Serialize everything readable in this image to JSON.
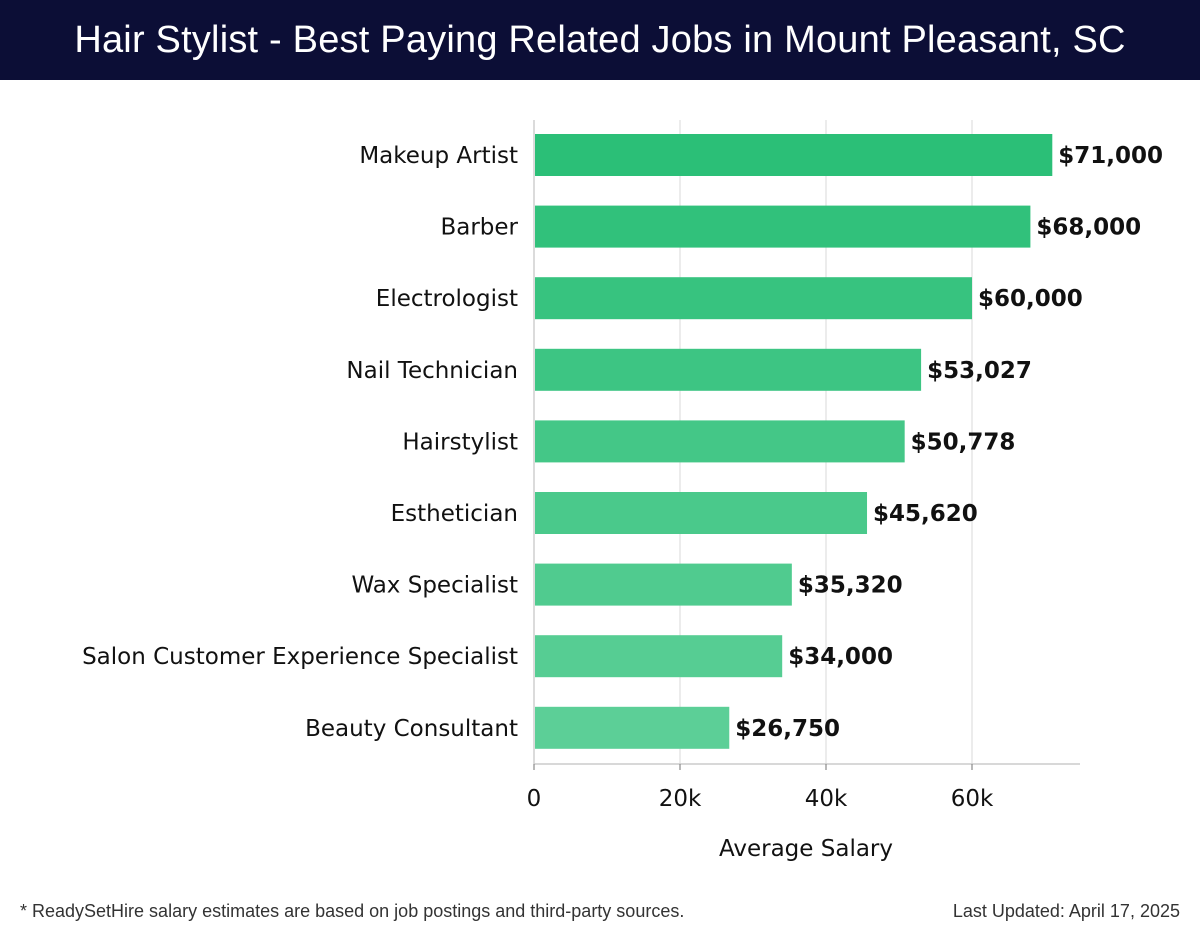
{
  "header": {
    "title": "Hair Stylist - Best Paying Related Jobs in Mount Pleasant, SC"
  },
  "chart_data": {
    "type": "bar",
    "orientation": "horizontal",
    "categories": [
      "Makeup Artist",
      "Barber",
      "Electrologist",
      "Nail Technician",
      "Hairstylist",
      "Esthetician",
      "Wax Specialist",
      "Salon Customer Experience Specialist",
      "Beauty Consultant"
    ],
    "values": [
      71000,
      68000,
      60000,
      53027,
      50778,
      45620,
      35320,
      34000,
      26750
    ],
    "data_labels": [
      "$71,000",
      "$68,000",
      "$60,000",
      "$53,027",
      "$50,778",
      "$45,620",
      "$35,320",
      "$34,000",
      "$26,750"
    ],
    "xlabel": "Average Salary",
    "xlim": [
      0,
      75000
    ],
    "xticks": [
      0,
      20000,
      40000,
      60000
    ],
    "xtick_labels": [
      "0",
      "20k",
      "40k",
      "60k"
    ],
    "grid": true,
    "colors": {
      "bar_top": "#2bbf77",
      "bar_bottom": "#5ccf97",
      "grid": "#e6e6e6",
      "axis": "#cccccc"
    }
  },
  "footer": {
    "note": "* ReadySetHire salary estimates are based on job postings and third-party sources.",
    "updated": "Last Updated: April 17, 2025"
  }
}
